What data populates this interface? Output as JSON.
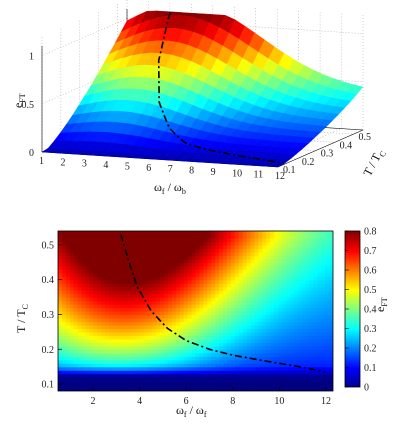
{
  "chart_data": [
    {
      "type": "surface",
      "xlabel": "ω",
      "xlabel_sub": "f",
      "xlabel_mid": " / ω",
      "xlabel_sub2": "b",
      "ylabel": "T / T",
      "ylabel_sub": "C",
      "zlabel": "e",
      "zlabel_sub": "FT",
      "x_ticks": [
        1,
        2,
        3,
        4,
        5,
        6,
        7,
        8,
        9,
        10,
        11,
        12
      ],
      "y_ticks": [
        0.1,
        0.2,
        0.3,
        0.4,
        0.5
      ],
      "z_ticks": [
        0,
        0.5,
        1
      ],
      "xlim": [
        1,
        12
      ],
      "ylim": [
        0.1,
        0.55
      ],
      "zlim": [
        0,
        1.1
      ],
      "grid": true,
      "peak": {
        "x": 4,
        "y": 0.53,
        "z": 1.0
      },
      "dashed_curve": {
        "x": [
          3.2,
          3.8,
          4.7,
          5.7,
          6.8,
          8.0,
          9.5,
          12.0
        ],
        "y": [
          0.53,
          0.4,
          0.3,
          0.24,
          0.2,
          0.18,
          0.16,
          0.13
        ]
      }
    },
    {
      "type": "heatmap",
      "xlabel": "ω",
      "xlabel_sub": "f",
      "xlabel_mid": " / ω",
      "xlabel_sub2": "f",
      "ylabel": "T / T",
      "ylabel_sub": "C",
      "x_ticks": [
        2,
        4,
        6,
        8,
        10,
        12
      ],
      "y_ticks": [
        0.1,
        0.2,
        0.3,
        0.4,
        0.5
      ],
      "xlim": [
        0.5,
        12.3
      ],
      "ylim": [
        0.08,
        0.54
      ],
      "colorbar": {
        "label": "e",
        "label_sub": "FT",
        "ticks": [
          0,
          0.1,
          0.2,
          0.3,
          0.4,
          0.5,
          0.6,
          0.7,
          0.8
        ],
        "range": [
          0,
          0.8
        ]
      },
      "dashed_curve": {
        "x": [
          3.2,
          3.5,
          3.9,
          4.5,
          5.2,
          6.0,
          7.0,
          8.0,
          9.5,
          11.0,
          12.0
        ],
        "y": [
          0.53,
          0.46,
          0.38,
          0.31,
          0.26,
          0.225,
          0.2,
          0.183,
          0.165,
          0.148,
          0.135
        ]
      }
    }
  ]
}
